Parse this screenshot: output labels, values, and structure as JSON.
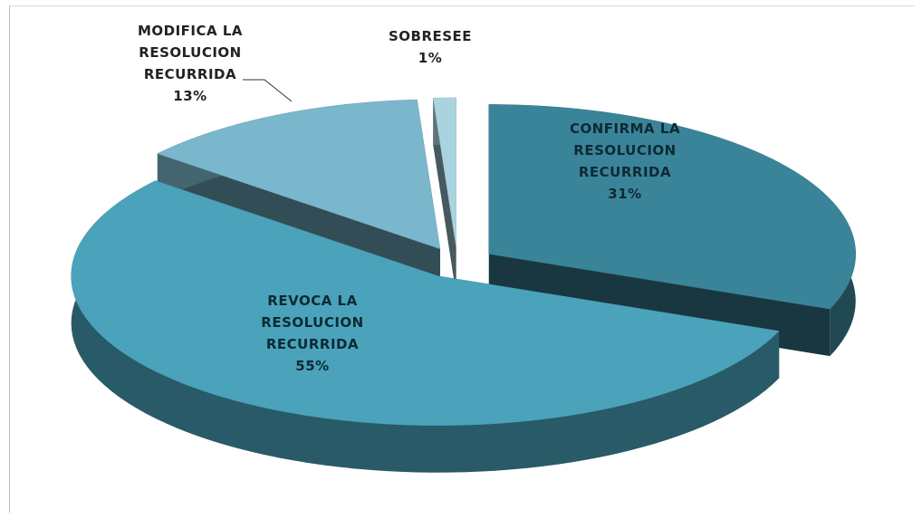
{
  "chart_data": {
    "type": "pie",
    "categories": [
      "CONFIRMA LA RESOLUCION RECURRIDA",
      "REVOCA LA RESOLUCION RECURRIDA",
      "MODIFICA LA RESOLUCION RECURRIDA",
      "SOBRESEE"
    ],
    "values": [
      31,
      55,
      13,
      1
    ],
    "value_labels": [
      "31%",
      "55%",
      "13%",
      "1%"
    ],
    "colors": [
      "#3a8499",
      "#4aa3bb",
      "#7ab7cc",
      "#a9d3df"
    ]
  }
}
